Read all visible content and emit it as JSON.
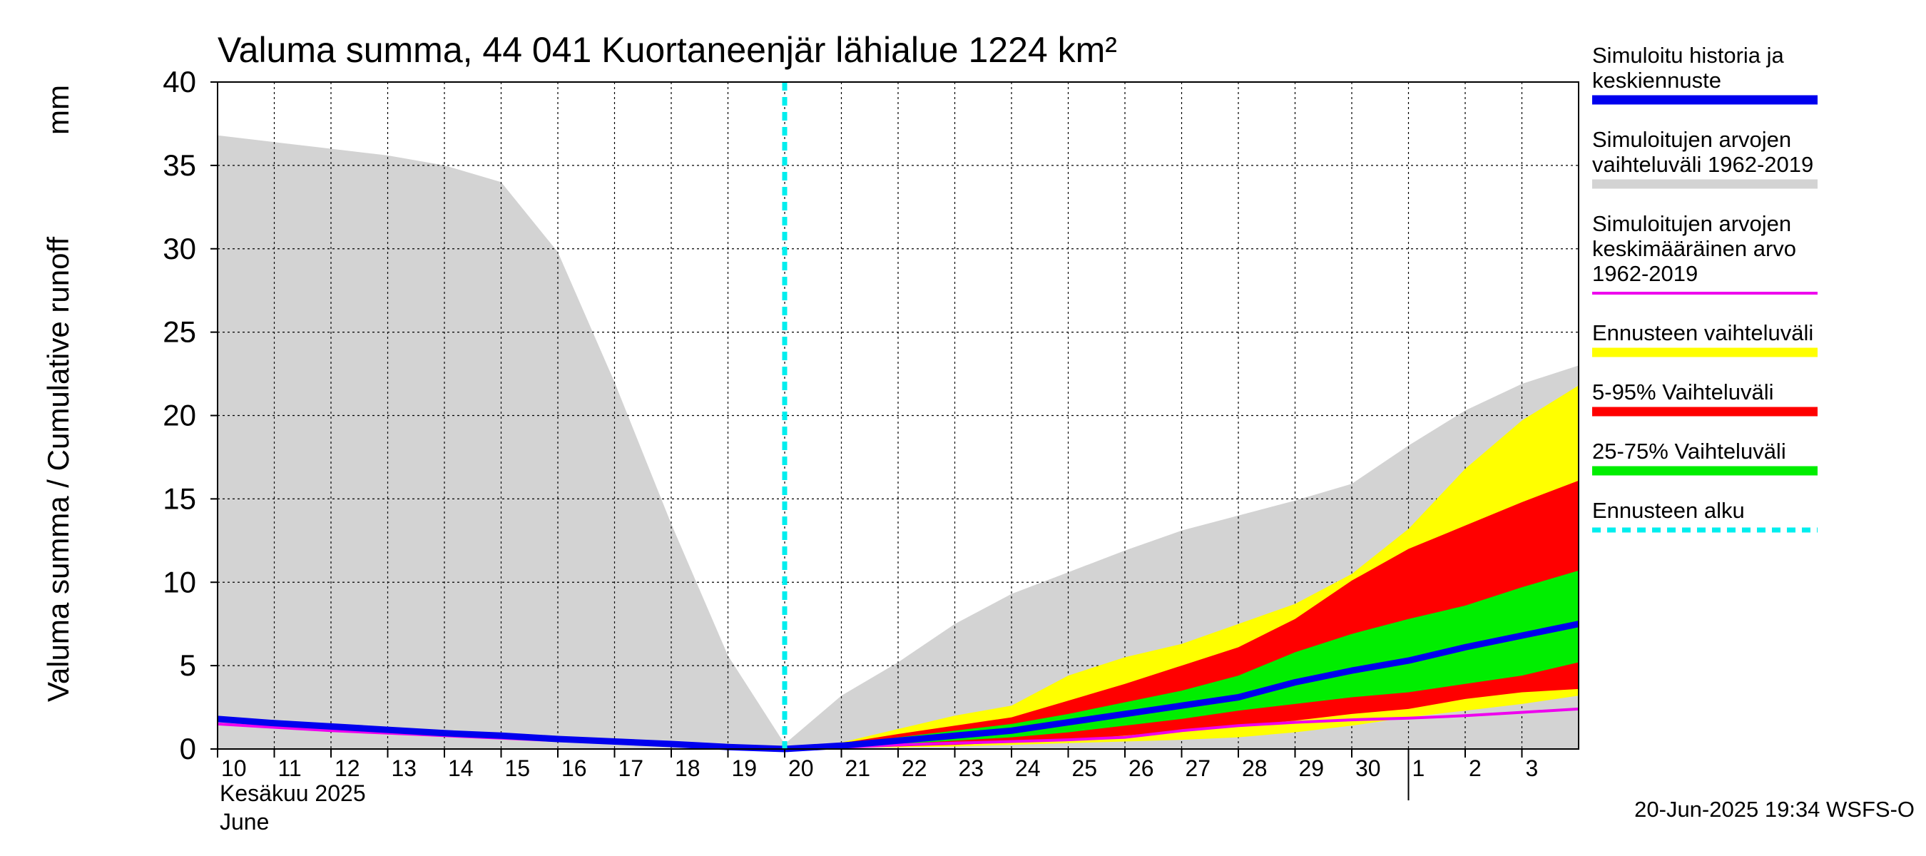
{
  "chart_data": {
    "type": "area",
    "title": "Valuma summa, 44 041 Kuortaneenjär lähialue 1224 km²",
    "ylabel_left": "Valuma summa / Cumulative runoff",
    "ylabel_unit": "mm",
    "ylim": [
      0,
      40
    ],
    "yticks": [
      0,
      5,
      10,
      15,
      20,
      25,
      30,
      35,
      40
    ],
    "grid": true,
    "x_start_day": 10,
    "x_end_day": 34,
    "xtick_labels": [
      "10",
      "11",
      "12",
      "13",
      "14",
      "15",
      "16",
      "17",
      "18",
      "19",
      "20",
      "21",
      "22",
      "23",
      "24",
      "25",
      "26",
      "27",
      "28",
      "29",
      "30",
      "1",
      "2",
      "3"
    ],
    "xlabel_month": "Kesäkuu   2025",
    "xlabel_month_en": "June",
    "forecast_start_day": 20,
    "month_boundary_day": 31,
    "timestamp": "20-Jun-2025 19:34 WSFS-O",
    "colors": {
      "history_range": "#d3d3d3",
      "forecast_range": "#ffff00",
      "p5_95": "#ff0000",
      "p25_75": "#00ee00",
      "median": "#0000ee",
      "mean": "#ee00ee",
      "forecast_start": "#00eeee"
    },
    "series": {
      "history_range": {
        "x": [
          10,
          11,
          12,
          13,
          14,
          15,
          16,
          17,
          18,
          19,
          20,
          20,
          21,
          22,
          23,
          24,
          25,
          26,
          27,
          28,
          29,
          30,
          31,
          32,
          33,
          34
        ],
        "upper": [
          36.8,
          36.4,
          36,
          35.6,
          35,
          34,
          29.8,
          22,
          13.5,
          5.6,
          0.3,
          0.3,
          3.2,
          5.2,
          7.5,
          9.3,
          10.6,
          11.9,
          13.1,
          14,
          14.9,
          15.9,
          18.2,
          20.3,
          21.9,
          23
        ],
        "lower": [
          0,
          0,
          0,
          0,
          0,
          0,
          0,
          0,
          0,
          0,
          0,
          0,
          0,
          0,
          0,
          0,
          0,
          0,
          0,
          0,
          0,
          0,
          0,
          0,
          0,
          0
        ]
      },
      "forecast_range": {
        "x": [
          20,
          21,
          22,
          23,
          24,
          25,
          26,
          27,
          28,
          29,
          30,
          31,
          32,
          33,
          34
        ],
        "upper": [
          0.1,
          0.4,
          1.2,
          2,
          2.6,
          4.4,
          5.5,
          6.3,
          7.5,
          8.7,
          10.5,
          13.2,
          16.8,
          19.7,
          21.8
        ],
        "lower": [
          0.1,
          0.1,
          0.1,
          0.15,
          0.25,
          0.35,
          0.45,
          0.55,
          0.7,
          1,
          1.4,
          1.9,
          2.3,
          2.7,
          3.2
        ]
      },
      "p5_95": {
        "x": [
          20,
          21,
          22,
          23,
          24,
          25,
          26,
          27,
          28,
          29,
          30,
          31,
          32,
          33,
          34
        ],
        "upper": [
          0.1,
          0.35,
          0.9,
          1.4,
          1.9,
          2.9,
          3.9,
          5,
          6.1,
          7.8,
          10.1,
          12,
          13.4,
          14.8,
          16.1
        ],
        "lower": [
          0.1,
          0.1,
          0.15,
          0.25,
          0.4,
          0.55,
          0.8,
          1.1,
          1.4,
          1.7,
          2.1,
          2.4,
          3,
          3.4,
          3.6
        ]
      },
      "p25_75": {
        "x": [
          20,
          21,
          22,
          23,
          24,
          25,
          26,
          27,
          28,
          29,
          30,
          31,
          32,
          33,
          34
        ],
        "upper": [
          0.1,
          0.3,
          0.7,
          1.1,
          1.5,
          2.1,
          2.8,
          3.5,
          4.4,
          5.8,
          6.9,
          7.8,
          8.6,
          9.7,
          10.7
        ],
        "lower": [
          0.1,
          0.15,
          0.3,
          0.5,
          0.7,
          1,
          1.4,
          1.8,
          2.3,
          2.7,
          3.1,
          3.4,
          3.9,
          4.4,
          5.2
        ]
      },
      "median": {
        "x": [
          10,
          11,
          12,
          13,
          14,
          15,
          16,
          17,
          18,
          19,
          20,
          21,
          22,
          23,
          24,
          25,
          26,
          27,
          28,
          29,
          30,
          31,
          32,
          33,
          34
        ],
        "y": [
          1.8,
          1.55,
          1.35,
          1.15,
          0.95,
          0.8,
          0.6,
          0.45,
          0.3,
          0.12,
          0,
          0.2,
          0.5,
          0.8,
          1.1,
          1.6,
          2.1,
          2.6,
          3.1,
          4,
          4.7,
          5.3,
          6.1,
          6.8,
          7.5
        ]
      },
      "mean": {
        "x": [
          10,
          11,
          12,
          13,
          14,
          15,
          16,
          17,
          18,
          19,
          20,
          21,
          22,
          23,
          24,
          25,
          26,
          27,
          28,
          29,
          30,
          31,
          32,
          33,
          34
        ],
        "y": [
          1.5,
          1.3,
          1.1,
          0.95,
          0.8,
          0.65,
          0.5,
          0.38,
          0.25,
          0.1,
          0,
          0.1,
          0.25,
          0.35,
          0.45,
          0.55,
          0.7,
          1.1,
          1.4,
          1.6,
          1.75,
          1.85,
          2,
          2.2,
          2.4
        ]
      }
    },
    "legend": [
      {
        "key": "median",
        "label_lines": [
          "Simuloitu historia ja",
          "keskiennuste"
        ],
        "style": "solid"
      },
      {
        "key": "history_range",
        "label_lines": [
          "Simuloitujen arvojen",
          "vaihteluväli 1962-2019"
        ],
        "style": "solid"
      },
      {
        "key": "mean",
        "label_lines": [
          "Simuloitujen arvojen",
          "keskimääräinen arvo",
          "   1962-2019"
        ],
        "style": "thin"
      },
      {
        "key": "forecast_range",
        "label_lines": [
          "Ennusteen vaihteluväli"
        ],
        "style": "solid"
      },
      {
        "key": "p5_95",
        "label_lines": [
          "5-95% Vaihteluväli"
        ],
        "style": "solid"
      },
      {
        "key": "p25_75",
        "label_lines": [
          "25-75% Vaihteluväli"
        ],
        "style": "solid"
      },
      {
        "key": "forecast_start",
        "label_lines": [
          "Ennusteen alku"
        ],
        "style": "dashed"
      }
    ]
  }
}
